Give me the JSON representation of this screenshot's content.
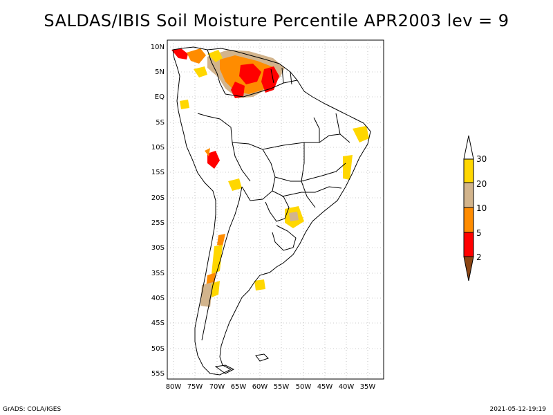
{
  "title": "SALDAS/IBIS Soil Moisture Percentile APR2003 lev = 9",
  "footer": {
    "left": "GrADS: COLA/IGES",
    "right": "2021-05-12-19:19"
  },
  "axes": {
    "lat_labels": [
      "10N",
      "5N",
      "EQ",
      "5S",
      "10S",
      "15S",
      "20S",
      "25S",
      "30S",
      "35S",
      "40S",
      "45S",
      "50S",
      "55S"
    ],
    "lon_labels": [
      "80W",
      "75W",
      "70W",
      "65W",
      "60W",
      "55W",
      "50W",
      "45W",
      "40W",
      "35W"
    ]
  },
  "colorbar": {
    "labels": [
      "30",
      "20",
      "10",
      "5",
      "2"
    ],
    "colors": [
      "#ffffff",
      "#ffd700",
      "#d2b48c",
      "#ff8c00",
      "#ff0000",
      "#8b4513"
    ]
  }
}
